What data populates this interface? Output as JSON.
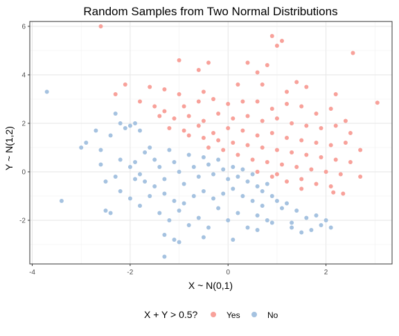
{
  "chart_data": {
    "type": "scatter",
    "title": "Random Samples from Two Normal Distributions",
    "xlabel": "X ~ N(0,1)",
    "ylabel": "Y ~ N(1,2)",
    "xlim": [
      -4.05,
      3.35
    ],
    "ylim": [
      -3.8,
      6.2
    ],
    "x_ticks": [
      -4,
      -2,
      0,
      2
    ],
    "y_ticks": [
      -2,
      0,
      2,
      4,
      6
    ],
    "grid": true,
    "legend": {
      "title": "X + Y > 0.5?",
      "position": "bottom",
      "entries": [
        {
          "label": "Yes",
          "color": "#F8A19A"
        },
        {
          "label": "No",
          "color": "#A5C2E0"
        }
      ]
    },
    "series": [
      {
        "name": "Yes",
        "color": "#F8A19A",
        "points": [
          [
            -2.6,
            6.0
          ],
          [
            -1.0,
            4.6
          ],
          [
            -0.6,
            4.2
          ],
          [
            -0.4,
            4.5
          ],
          [
            0.4,
            4.5
          ],
          [
            0.8,
            4.4
          ],
          [
            1.0,
            5.2
          ],
          [
            1.1,
            5.4
          ],
          [
            0.9,
            5.6
          ],
          [
            0.6,
            4.1
          ],
          [
            -1.6,
            3.5
          ],
          [
            -1.3,
            3.4
          ],
          [
            -1.0,
            3.2
          ],
          [
            -0.5,
            3.3
          ],
          [
            0.2,
            3.6
          ],
          [
            0.7,
            3.6
          ],
          [
            1.2,
            3.3
          ],
          [
            1.4,
            3.7
          ],
          [
            1.6,
            3.5
          ],
          [
            2.2,
            3.2
          ],
          [
            2.55,
            4.9
          ],
          [
            3.05,
            2.85
          ],
          [
            -2.1,
            3.6
          ],
          [
            -2.3,
            3.2
          ],
          [
            -1.8,
            2.9
          ],
          [
            -1.5,
            2.7
          ],
          [
            -1.3,
            2.5
          ],
          [
            -0.9,
            2.7
          ],
          [
            -0.6,
            2.9
          ],
          [
            -0.3,
            3.0
          ],
          [
            0.0,
            2.8
          ],
          [
            0.3,
            2.9
          ],
          [
            0.6,
            2.9
          ],
          [
            0.9,
            2.6
          ],
          [
            1.2,
            2.8
          ],
          [
            1.5,
            2.7
          ],
          [
            1.8,
            2.4
          ],
          [
            2.1,
            2.6
          ],
          [
            2.4,
            2.1
          ],
          [
            -1.4,
            2.3
          ],
          [
            -1.1,
            2.2
          ],
          [
            -0.8,
            2.3
          ],
          [
            -0.5,
            2.1
          ],
          [
            -0.2,
            2.4
          ],
          [
            0.1,
            2.2
          ],
          [
            0.4,
            2.3
          ],
          [
            0.7,
            2.1
          ],
          [
            1.0,
            2.2
          ],
          [
            1.3,
            2.0
          ],
          [
            1.6,
            1.9
          ],
          [
            1.9,
            1.8
          ],
          [
            2.2,
            1.9
          ],
          [
            2.5,
            1.6
          ],
          [
            -1.2,
            1.8
          ],
          [
            -0.9,
            1.7
          ],
          [
            -0.6,
            1.9
          ],
          [
            -0.3,
            1.6
          ],
          [
            0.0,
            1.8
          ],
          [
            0.3,
            1.7
          ],
          [
            0.6,
            1.5
          ],
          [
            0.9,
            1.6
          ],
          [
            1.2,
            1.4
          ],
          [
            1.5,
            1.3
          ],
          [
            1.8,
            1.2
          ],
          [
            2.1,
            1.1
          ],
          [
            2.4,
            1.2
          ],
          [
            2.7,
            0.9
          ],
          [
            -0.8,
            1.5
          ],
          [
            -0.5,
            1.4
          ],
          [
            -0.2,
            1.3
          ],
          [
            0.1,
            1.2
          ],
          [
            0.4,
            1.1
          ],
          [
            0.7,
            1.0
          ],
          [
            1.0,
            0.9
          ],
          [
            1.3,
            0.8
          ],
          [
            1.6,
            0.7
          ],
          [
            1.9,
            0.6
          ],
          [
            2.2,
            0.5
          ],
          [
            2.5,
            0.4
          ],
          [
            -0.4,
            1.0
          ],
          [
            -0.1,
            0.9
          ],
          [
            0.2,
            0.7
          ],
          [
            0.5,
            0.5
          ],
          [
            0.8,
            0.4
          ],
          [
            1.1,
            0.3
          ],
          [
            1.4,
            0.2
          ],
          [
            1.7,
            0.1
          ],
          [
            2.0,
            0.0
          ],
          [
            2.3,
            -0.1
          ],
          [
            0.6,
            0.0
          ],
          [
            0.9,
            -0.2
          ],
          [
            1.2,
            -0.4
          ],
          [
            1.5,
            -0.3
          ],
          [
            1.8,
            -0.5
          ],
          [
            2.1,
            -0.6
          ],
          [
            2.35,
            -0.9
          ],
          [
            2.7,
            -0.2
          ],
          [
            1.5,
            -0.7
          ],
          [
            2.15,
            -0.85
          ],
          [
            1.0,
            -0.1
          ]
        ]
      },
      {
        "name": "No",
        "color": "#A5C2E0",
        "points": [
          [
            -3.7,
            3.3
          ],
          [
            -3.4,
            -1.2
          ],
          [
            -3.0,
            1.0
          ],
          [
            -2.9,
            1.2
          ],
          [
            -2.6,
            0.3
          ],
          [
            -2.5,
            -1.6
          ],
          [
            -2.4,
            -1.7
          ],
          [
            -2.3,
            2.4
          ],
          [
            -2.2,
            2.0
          ],
          [
            -2.1,
            1.8
          ],
          [
            -2.0,
            1.9
          ],
          [
            -1.9,
            2.0
          ],
          [
            -1.8,
            1.7
          ],
          [
            -2.2,
            0.5
          ],
          [
            -2.0,
            0.2
          ],
          [
            -1.8,
            -0.1
          ],
          [
            -1.7,
            0.8
          ],
          [
            -1.6,
            1.0
          ],
          [
            -1.5,
            0.5
          ],
          [
            -1.4,
            0.2
          ],
          [
            -1.3,
            -0.3
          ],
          [
            -1.2,
            0.9
          ],
          [
            -1.1,
            0.4
          ],
          [
            -1.0,
            0.0
          ],
          [
            -0.9,
            -0.5
          ],
          [
            -0.8,
            0.7
          ],
          [
            -0.7,
            0.2
          ],
          [
            -0.6,
            -0.2
          ],
          [
            -0.5,
            0.6
          ],
          [
            -0.4,
            0.3
          ],
          [
            -0.3,
            -0.1
          ],
          [
            -0.2,
            0.5
          ],
          [
            -0.1,
            0.1
          ],
          [
            0.0,
            -0.3
          ],
          [
            0.1,
            0.2
          ],
          [
            0.2,
            -0.2
          ],
          [
            0.3,
            0.1
          ],
          [
            0.4,
            -0.4
          ],
          [
            0.5,
            -0.1
          ],
          [
            0.6,
            -0.6
          ],
          [
            0.7,
            -0.8
          ],
          [
            0.8,
            -0.5
          ],
          [
            0.9,
            -1.0
          ],
          [
            1.0,
            -1.2
          ],
          [
            1.1,
            -1.5
          ],
          [
            1.2,
            -1.3
          ],
          [
            1.4,
            -1.6
          ],
          [
            1.6,
            -1.9
          ],
          [
            1.8,
            -1.8
          ],
          [
            2.0,
            -2.0
          ],
          [
            2.1,
            -2.3
          ],
          [
            1.7,
            -2.4
          ],
          [
            1.3,
            -2.1
          ],
          [
            -2.2,
            -0.8
          ],
          [
            -2.0,
            -1.1
          ],
          [
            -1.8,
            -1.4
          ],
          [
            -1.6,
            -1.0
          ],
          [
            -1.4,
            -1.7
          ],
          [
            -1.2,
            -2.0
          ],
          [
            -1.0,
            -1.6
          ],
          [
            -0.8,
            -2.2
          ],
          [
            -0.6,
            -1.9
          ],
          [
            -0.4,
            -2.3
          ],
          [
            -0.2,
            -1.5
          ],
          [
            0.0,
            -2.0
          ],
          [
            0.2,
            -1.7
          ],
          [
            0.4,
            -2.3
          ],
          [
            0.6,
            -1.8
          ],
          [
            0.8,
            -2.0
          ],
          [
            -1.3,
            -2.6
          ],
          [
            -1.1,
            -2.8
          ],
          [
            -1.0,
            -2.9
          ],
          [
            -0.5,
            -2.7
          ],
          [
            0.1,
            -2.8
          ],
          [
            -1.3,
            -3.5
          ],
          [
            -1.9,
            0.4
          ],
          [
            -1.7,
            -0.4
          ],
          [
            -1.5,
            -0.6
          ],
          [
            -1.3,
            -0.9
          ],
          [
            -1.1,
            -1.2
          ],
          [
            -0.9,
            -1.3
          ],
          [
            -0.7,
            -1.0
          ],
          [
            -0.5,
            -0.8
          ],
          [
            -0.3,
            -1.1
          ],
          [
            -0.1,
            -0.9
          ],
          [
            0.1,
            -0.7
          ],
          [
            0.3,
            -1.0
          ],
          [
            0.5,
            -1.2
          ],
          [
            0.7,
            -1.4
          ],
          [
            -2.7,
            1.7
          ],
          [
            -2.6,
            0.9
          ],
          [
            -2.4,
            1.5
          ],
          [
            -2.5,
            -0.4
          ],
          [
            -2.3,
            -0.2
          ],
          [
            -1.9,
            -0.3
          ],
          [
            1.9,
            -2.2
          ],
          [
            1.5,
            -2.5
          ],
          [
            1.3,
            -2.3
          ],
          [
            0.9,
            -2.1
          ],
          [
            0.6,
            -2.4
          ]
        ]
      }
    ]
  }
}
